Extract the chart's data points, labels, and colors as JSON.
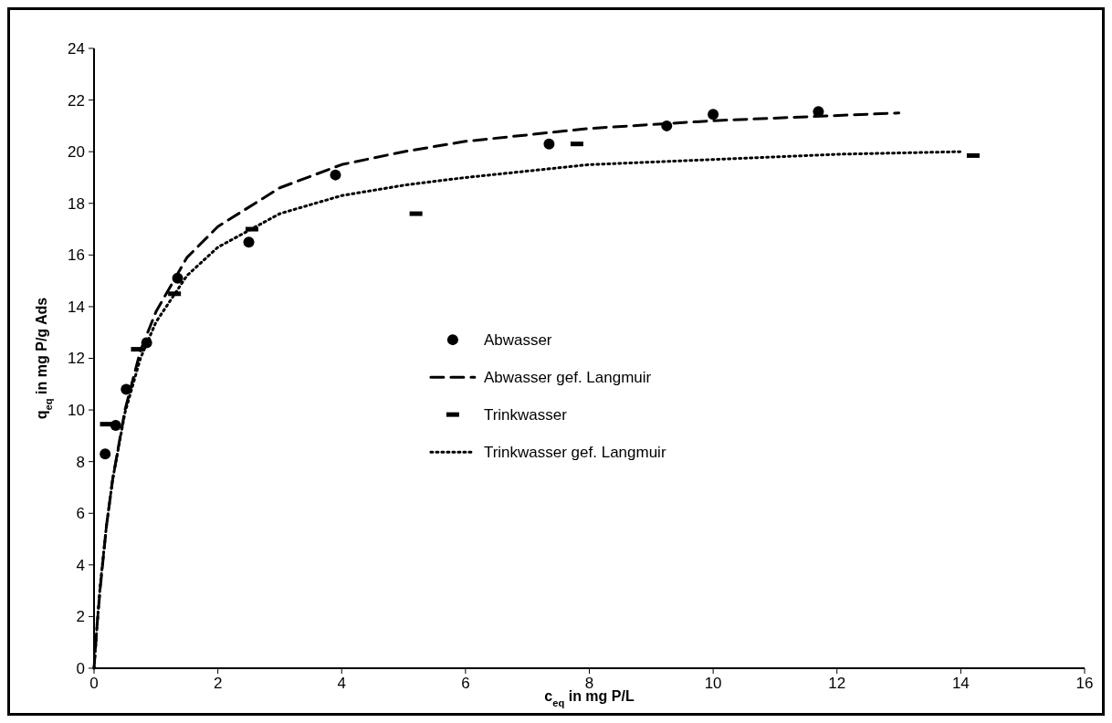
{
  "chart_data": {
    "type": "scatter",
    "xlabel": "c$_{eq}$ in mg P/L",
    "ylabel": "q$_{eq}$ in mg P/g Ads",
    "xlim": [
      0,
      16
    ],
    "ylim": [
      0,
      24
    ],
    "xticks": [
      0,
      2,
      4,
      6,
      8,
      10,
      12,
      14,
      16
    ],
    "yticks": [
      0,
      2,
      4,
      6,
      8,
      10,
      12,
      14,
      16,
      18,
      20,
      22,
      24
    ],
    "grid": false,
    "legend": "center",
    "series": [
      {
        "name": "Abwasser",
        "marker": "circle",
        "color": "#000000",
        "x": [
          0.18,
          0.35,
          0.52,
          0.85,
          1.35,
          2.5,
          3.9,
          7.35,
          9.25,
          10.0,
          11.7
        ],
        "values": [
          8.3,
          9.4,
          10.8,
          12.6,
          15.1,
          16.5,
          19.1,
          20.3,
          21.0,
          21.45,
          21.55
        ]
      },
      {
        "name": "Abwasser gef. Langmuir",
        "type": "line",
        "marker": "none",
        "line_style": "dashed",
        "color": "#000000",
        "x": [
          0,
          0.05,
          0.1,
          0.2,
          0.3,
          0.5,
          0.75,
          1,
          1.5,
          2,
          3,
          4,
          5,
          6,
          8,
          10,
          13
        ],
        "values": [
          0,
          1.7,
          3.1,
          5.5,
          7.3,
          10.0,
          12.3,
          13.8,
          15.9,
          17.1,
          18.6,
          19.5,
          20.0,
          20.4,
          20.9,
          21.2,
          21.5
        ]
      },
      {
        "name": "Trinkwasser",
        "color": "#000000",
        "x": [
          0.2,
          0.7,
          1.3,
          2.55,
          5.2,
          7.8,
          14.2
        ],
        "values": [
          9.45,
          12.35,
          14.5,
          17.0,
          17.6,
          20.3,
          19.85
        ]
      },
      {
        "name": "Trinkwasser gef. Langmuir",
        "type": "line",
        "marker": "none",
        "line_style": "dotted",
        "color": "#000000",
        "x": [
          0,
          0.05,
          0.1,
          0.2,
          0.3,
          0.5,
          0.75,
          1,
          1.5,
          2,
          3,
          4,
          5,
          6,
          8,
          10,
          12,
          14
        ],
        "values": [
          0,
          1.7,
          3.2,
          5.5,
          7.3,
          9.9,
          12.0,
          13.4,
          15.2,
          16.3,
          17.6,
          18.3,
          18.7,
          19.0,
          19.5,
          19.7,
          19.9,
          20.0
        ]
      }
    ]
  }
}
